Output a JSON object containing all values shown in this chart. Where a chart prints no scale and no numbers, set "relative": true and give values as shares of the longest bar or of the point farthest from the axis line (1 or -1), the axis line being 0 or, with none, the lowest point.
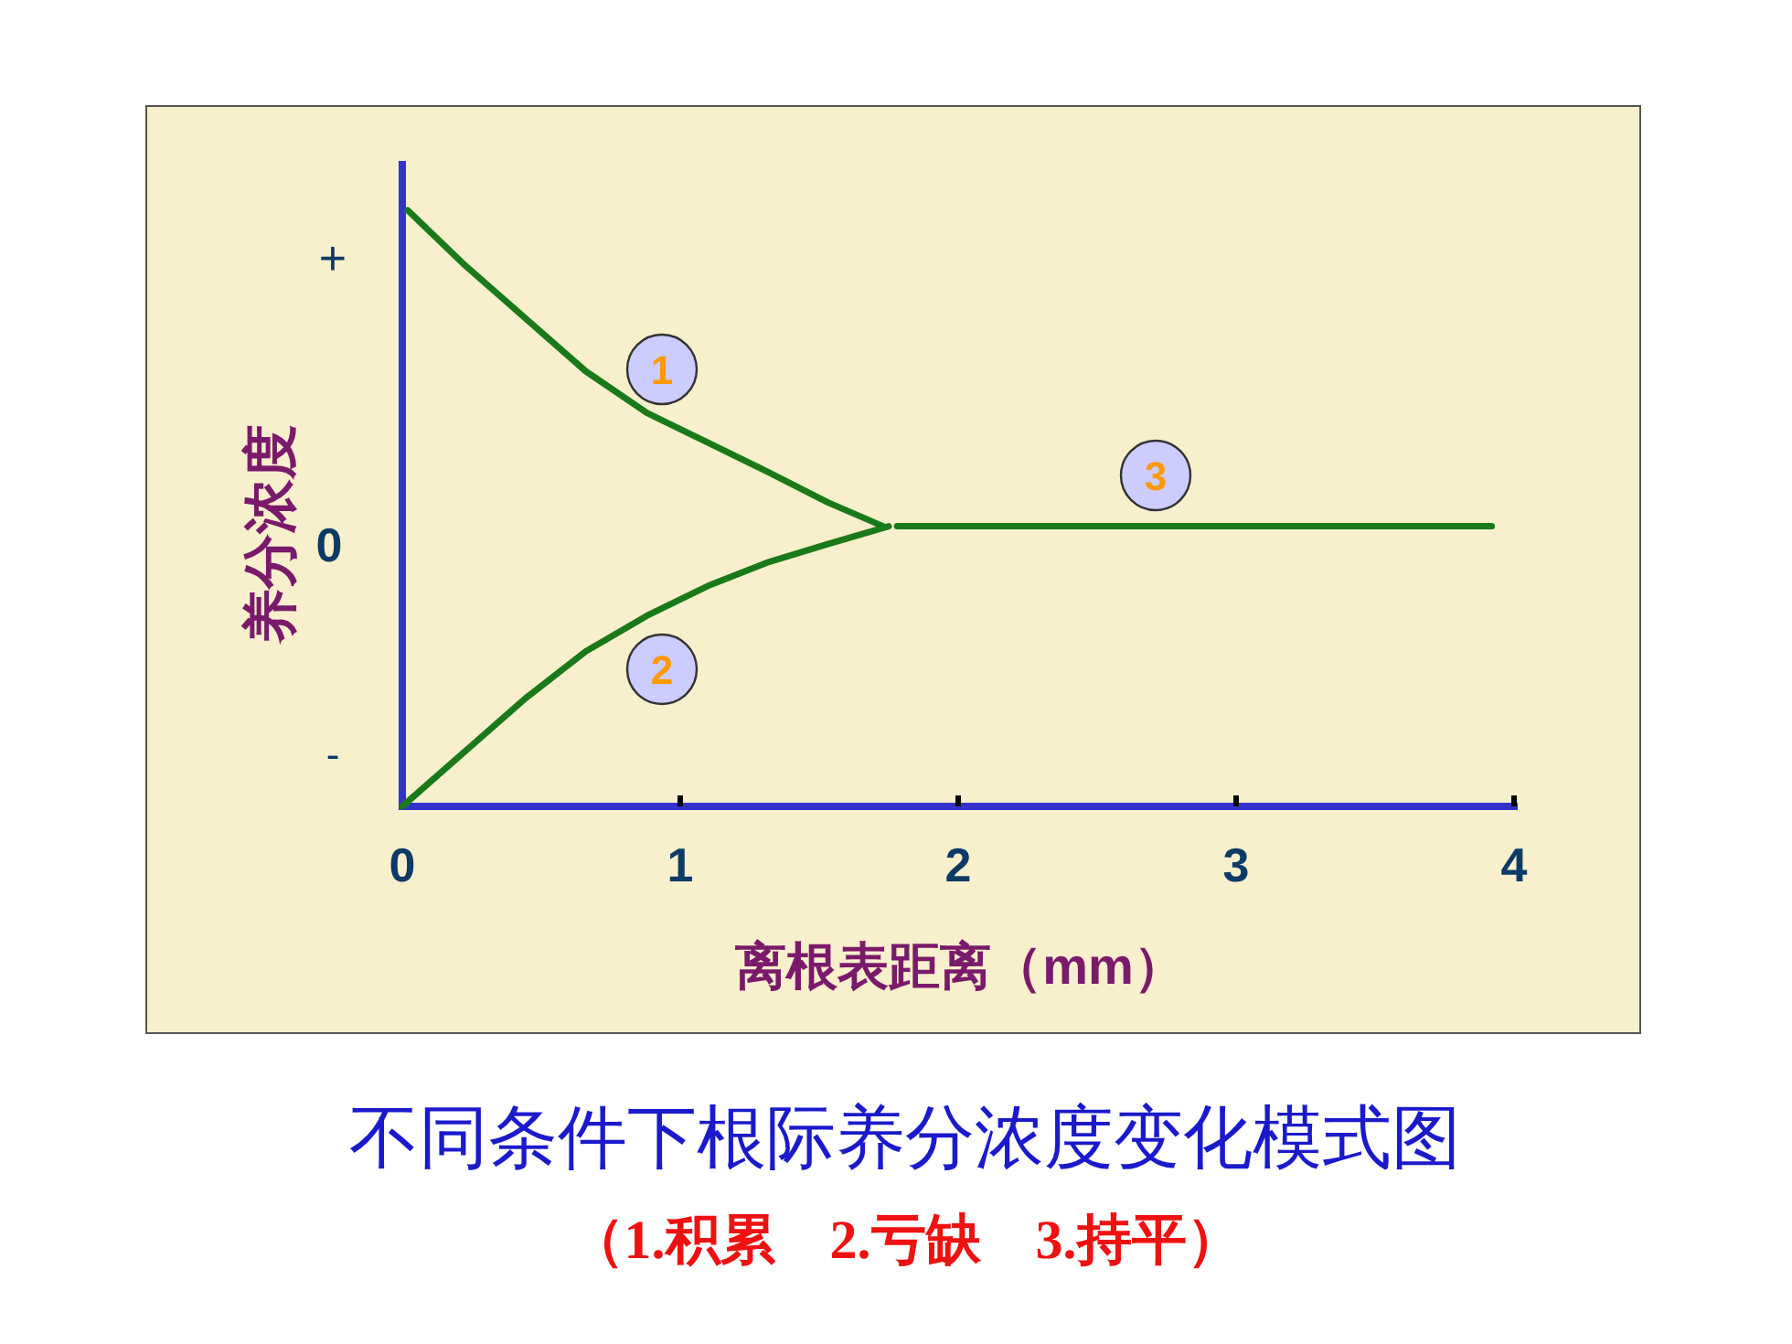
{
  "chart_data": {
    "type": "line",
    "relative": true,
    "title": "不同条件下根际养分浓度变化模式图",
    "subtitle": "（1.积累　2.亏缺　3.持平）",
    "xlabel": "离根表距离（mm）",
    "ylabel": "养分浓度",
    "xlim": [
      0,
      4
    ],
    "xticks": [
      0,
      1,
      2,
      3,
      4
    ],
    "annotations": [
      "+",
      "0",
      "-"
    ],
    "series": [
      {
        "name": "1",
        "color": "#1a7a1a",
        "x": [
          0.02,
          0.22,
          0.44,
          0.66,
          0.88,
          1.1,
          1.32,
          1.53,
          1.73
        ],
        "values": [
          1.0,
          0.91,
          0.82,
          0.73,
          0.66,
          0.61,
          0.56,
          0.51,
          0.47
        ]
      },
      {
        "name": "2",
        "color": "#1a7a1a",
        "x": [
          0,
          0.22,
          0.44,
          0.66,
          0.88,
          1.1,
          1.32,
          1.53,
          1.75
        ],
        "values": [
          0.0,
          0.09,
          0.18,
          0.26,
          0.32,
          0.37,
          0.41,
          0.44,
          0.47
        ]
      },
      {
        "name": "3",
        "color": "#1a7a1a",
        "x": [
          1.78,
          3.92
        ],
        "values": [
          0.47,
          0.47
        ]
      }
    ]
  }
}
